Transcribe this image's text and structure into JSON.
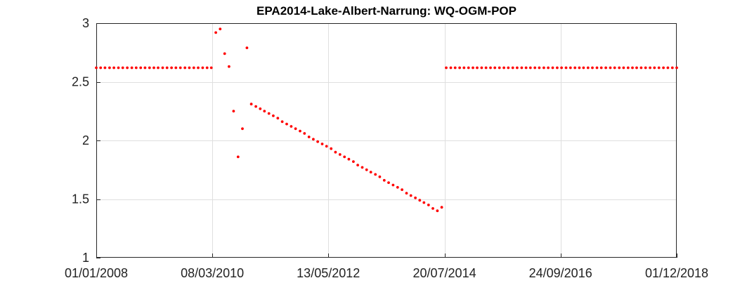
{
  "chart_data": {
    "type": "scatter",
    "title": "EPA2014-Lake-Albert-Narrung: WQ-OGM-POP",
    "xlabel": "",
    "ylabel": "",
    "x_type": "date",
    "xlim": [
      "2008-01-01",
      "2018-12-01"
    ],
    "ylim": [
      1,
      3
    ],
    "xticks": [
      "2008-01-01",
      "2010-03-08",
      "2012-05-13",
      "2014-07-20",
      "2016-09-24",
      "2018-12-01"
    ],
    "xtick_labels": [
      "01/01/2008",
      "08/03/2010",
      "13/05/2012",
      "20/07/2014",
      "24/09/2016",
      "01/12/2018"
    ],
    "yticks": [
      1,
      1.5,
      2,
      2.5,
      3
    ],
    "ytick_labels": [
      "1",
      "1.5",
      "2",
      "2.5",
      "3"
    ],
    "grid": true,
    "marker_color": "#ff0000",
    "series": [
      {
        "points": [
          [
            "2008-01-01",
            2.62
          ],
          [
            "2008-01-31",
            2.62
          ],
          [
            "2008-03-01",
            2.62
          ],
          [
            "2008-04-01",
            2.62
          ],
          [
            "2008-05-01",
            2.62
          ],
          [
            "2008-06-01",
            2.62
          ],
          [
            "2008-07-01",
            2.62
          ],
          [
            "2008-08-01",
            2.62
          ],
          [
            "2008-09-01",
            2.62
          ],
          [
            "2008-10-01",
            2.62
          ],
          [
            "2008-11-01",
            2.62
          ],
          [
            "2008-12-01",
            2.62
          ],
          [
            "2009-01-01",
            2.62
          ],
          [
            "2009-01-31",
            2.62
          ],
          [
            "2009-03-01",
            2.62
          ],
          [
            "2009-04-01",
            2.62
          ],
          [
            "2009-05-01",
            2.62
          ],
          [
            "2009-06-01",
            2.62
          ],
          [
            "2009-07-01",
            2.62
          ],
          [
            "2009-08-01",
            2.62
          ],
          [
            "2009-09-01",
            2.62
          ],
          [
            "2009-10-01",
            2.62
          ],
          [
            "2009-11-01",
            2.62
          ],
          [
            "2009-12-01",
            2.62
          ],
          [
            "2010-01-01",
            2.62
          ],
          [
            "2010-01-31",
            2.62
          ],
          [
            "2010-03-01",
            2.62
          ],
          [
            "2010-04-01",
            2.92
          ],
          [
            "2010-05-01",
            2.95
          ],
          [
            "2010-06-01",
            2.74
          ],
          [
            "2010-07-01",
            2.63
          ],
          [
            "2010-08-01",
            2.25
          ],
          [
            "2010-09-01",
            1.86
          ],
          [
            "2010-10-01",
            2.1
          ],
          [
            "2010-11-01",
            2.79
          ],
          [
            "2010-12-01",
            2.31
          ],
          [
            "2011-01-01",
            2.29
          ],
          [
            "2011-01-31",
            2.27
          ],
          [
            "2011-03-01",
            2.25
          ],
          [
            "2011-04-01",
            2.23
          ],
          [
            "2011-05-01",
            2.21
          ],
          [
            "2011-06-01",
            2.19
          ],
          [
            "2011-07-01",
            2.16
          ],
          [
            "2011-08-01",
            2.14
          ],
          [
            "2011-09-01",
            2.12
          ],
          [
            "2011-10-01",
            2.1
          ],
          [
            "2011-11-01",
            2.08
          ],
          [
            "2011-12-01",
            2.06
          ],
          [
            "2012-01-01",
            2.03
          ],
          [
            "2012-01-31",
            2.01
          ],
          [
            "2012-03-01",
            1.99
          ],
          [
            "2012-04-01",
            1.97
          ],
          [
            "2012-05-01",
            1.95
          ],
          [
            "2012-06-01",
            1.93
          ],
          [
            "2012-07-01",
            1.9
          ],
          [
            "2012-08-01",
            1.88
          ],
          [
            "2012-09-01",
            1.86
          ],
          [
            "2012-10-01",
            1.84
          ],
          [
            "2012-11-01",
            1.82
          ],
          [
            "2012-12-01",
            1.79
          ],
          [
            "2013-01-01",
            1.77
          ],
          [
            "2013-01-31",
            1.75
          ],
          [
            "2013-03-01",
            1.73
          ],
          [
            "2013-04-01",
            1.71
          ],
          [
            "2013-05-01",
            1.69
          ],
          [
            "2013-06-01",
            1.66
          ],
          [
            "2013-07-01",
            1.64
          ],
          [
            "2013-08-01",
            1.62
          ],
          [
            "2013-09-01",
            1.6
          ],
          [
            "2013-10-01",
            1.58
          ],
          [
            "2013-11-01",
            1.55
          ],
          [
            "2013-12-01",
            1.53
          ],
          [
            "2014-01-01",
            1.51
          ],
          [
            "2014-01-31",
            1.49
          ],
          [
            "2014-03-01",
            1.47
          ],
          [
            "2014-04-01",
            1.45
          ],
          [
            "2014-05-01",
            1.42
          ],
          [
            "2014-06-01",
            1.4
          ],
          [
            "2014-07-01",
            1.43
          ],
          [
            "2014-08-01",
            2.62
          ],
          [
            "2014-09-01",
            2.62
          ],
          [
            "2014-10-01",
            2.62
          ],
          [
            "2014-11-01",
            2.62
          ],
          [
            "2014-12-01",
            2.62
          ],
          [
            "2015-01-01",
            2.62
          ],
          [
            "2015-01-31",
            2.62
          ],
          [
            "2015-03-01",
            2.62
          ],
          [
            "2015-04-01",
            2.62
          ],
          [
            "2015-05-01",
            2.62
          ],
          [
            "2015-06-01",
            2.62
          ],
          [
            "2015-07-01",
            2.62
          ],
          [
            "2015-08-01",
            2.62
          ],
          [
            "2015-09-01",
            2.62
          ],
          [
            "2015-10-01",
            2.62
          ],
          [
            "2015-11-01",
            2.62
          ],
          [
            "2015-12-01",
            2.62
          ],
          [
            "2016-01-01",
            2.62
          ],
          [
            "2016-01-31",
            2.62
          ],
          [
            "2016-03-01",
            2.62
          ],
          [
            "2016-04-01",
            2.62
          ],
          [
            "2016-05-01",
            2.62
          ],
          [
            "2016-06-01",
            2.62
          ],
          [
            "2016-07-01",
            2.62
          ],
          [
            "2016-08-01",
            2.62
          ],
          [
            "2016-09-01",
            2.62
          ],
          [
            "2016-10-01",
            2.62
          ],
          [
            "2016-11-01",
            2.62
          ],
          [
            "2016-12-01",
            2.62
          ],
          [
            "2017-01-01",
            2.62
          ],
          [
            "2017-01-31",
            2.62
          ],
          [
            "2017-03-01",
            2.62
          ],
          [
            "2017-04-01",
            2.62
          ],
          [
            "2017-05-01",
            2.62
          ],
          [
            "2017-06-01",
            2.62
          ],
          [
            "2017-07-01",
            2.62
          ],
          [
            "2017-08-01",
            2.62
          ],
          [
            "2017-09-01",
            2.62
          ],
          [
            "2017-10-01",
            2.62
          ],
          [
            "2017-11-01",
            2.62
          ],
          [
            "2017-12-01",
            2.62
          ],
          [
            "2018-01-01",
            2.62
          ],
          [
            "2018-01-31",
            2.62
          ],
          [
            "2018-03-01",
            2.62
          ],
          [
            "2018-04-01",
            2.62
          ],
          [
            "2018-05-01",
            2.62
          ],
          [
            "2018-06-01",
            2.62
          ],
          [
            "2018-07-01",
            2.62
          ],
          [
            "2018-08-01",
            2.62
          ],
          [
            "2018-09-01",
            2.62
          ],
          [
            "2018-10-01",
            2.62
          ],
          [
            "2018-11-01",
            2.62
          ],
          [
            "2018-12-01",
            2.62
          ]
        ]
      }
    ]
  }
}
